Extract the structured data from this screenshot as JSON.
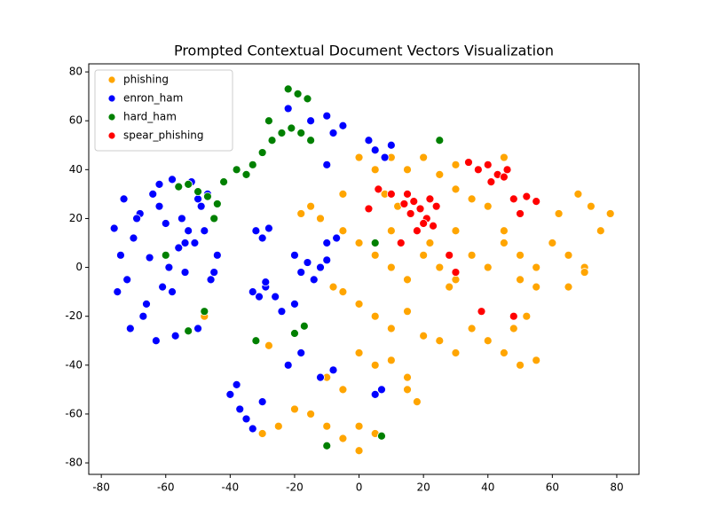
{
  "chart_data": {
    "type": "scatter",
    "title": "Prompted Contextual Document Vectors Visualization",
    "xlim": [
      -83.9,
      86.9
    ],
    "ylim": [
      -84.7,
      83.3
    ],
    "xticks": [
      -80,
      -60,
      -40,
      -20,
      0,
      20,
      40,
      60,
      80
    ],
    "yticks": [
      -80,
      -60,
      -40,
      -20,
      0,
      20,
      40,
      60,
      80
    ],
    "legend": "upper left",
    "series": [
      {
        "name": "phishing",
        "color": "#ffa500",
        "x": [
          0,
          5,
          10,
          15,
          20,
          25,
          30,
          8,
          12,
          0,
          5,
          10,
          15,
          20,
          25,
          30,
          35,
          40,
          45,
          50,
          55,
          60,
          65,
          70,
          62,
          68,
          72,
          78,
          75,
          50,
          55,
          45,
          40,
          35,
          30,
          45,
          -5,
          0,
          5,
          10,
          15,
          20,
          25,
          30,
          35,
          40,
          45,
          50,
          55,
          48,
          52,
          0,
          5,
          10,
          15,
          -10,
          -5,
          15,
          18,
          -15,
          -10,
          -5,
          0,
          5,
          -25,
          -20,
          -30,
          0,
          -15,
          -18,
          -12,
          -5,
          -5,
          -8,
          -28,
          -48,
          65,
          70,
          28,
          22,
          10,
          30
        ],
        "values": [
          45,
          40,
          45,
          40,
          45,
          38,
          42,
          30,
          25,
          10,
          5,
          0,
          -5,
          5,
          0,
          -5,
          5,
          0,
          10,
          5,
          0,
          10,
          5,
          0,
          22,
          30,
          25,
          22,
          15,
          -5,
          -8,
          15,
          25,
          28,
          32,
          45,
          -10,
          -15,
          -20,
          -25,
          -18,
          -28,
          -30,
          -35,
          -25,
          -30,
          -35,
          -40,
          -38,
          -25,
          -20,
          -35,
          -40,
          -38,
          -45,
          -45,
          -50,
          -50,
          -55,
          -60,
          -65,
          -70,
          -75,
          -68,
          -65,
          -58,
          -68,
          -65,
          25,
          22,
          20,
          30,
          15,
          -8,
          -32,
          -20,
          -8,
          -2,
          -8,
          10,
          15,
          15
        ]
      },
      {
        "name": "enron_ham",
        "color": "#0000ff",
        "x": [
          -76,
          -74,
          -72,
          -70,
          -68,
          -66,
          -64,
          -62,
          -60,
          -58,
          -56,
          -54,
          -52,
          -50,
          -48,
          -46,
          -44,
          -75,
          -71,
          -67,
          -63,
          -59,
          -55,
          -51,
          -47,
          -73,
          -69,
          -65,
          -61,
          -57,
          -53,
          -49,
          -45,
          -62,
          -58,
          -54,
          -50,
          -32,
          -30,
          -28,
          -33,
          -31,
          -29,
          -20,
          -18,
          -16,
          -14,
          -12,
          -10,
          -22,
          -15,
          -10,
          -8,
          -5,
          -10,
          -40,
          -37,
          -35,
          -33,
          -30,
          -38,
          -22,
          -18,
          -12,
          -8,
          3,
          5,
          7,
          5,
          8,
          10,
          -26,
          -24,
          -20,
          -10,
          -7,
          -29
        ],
        "values": [
          16,
          5,
          -5,
          12,
          22,
          -15,
          30,
          25,
          18,
          -10,
          8,
          -2,
          35,
          28,
          15,
          -5,
          5,
          -10,
          -25,
          -20,
          -30,
          0,
          20,
          10,
          30,
          28,
          20,
          4,
          -8,
          -28,
          15,
          25,
          -2,
          34,
          36,
          10,
          -25,
          15,
          12,
          16,
          -10,
          -12,
          -8,
          5,
          -2,
          2,
          -5,
          0,
          3,
          65,
          60,
          62,
          55,
          58,
          42,
          -52,
          -58,
          -62,
          -66,
          -55,
          -48,
          -40,
          -35,
          -45,
          -42,
          52,
          48,
          -50,
          -52,
          45,
          50,
          -12,
          -18,
          -15,
          10,
          12,
          -6
        ]
      },
      {
        "name": "hard_ham",
        "color": "#008000",
        "x": [
          -56,
          -53,
          -50,
          -47,
          -44,
          -42,
          -38,
          -35,
          -33,
          -30,
          -27,
          -24,
          -21,
          -18,
          -15,
          -22,
          -19,
          -16,
          -28,
          -60,
          -53,
          -20,
          -17,
          7,
          -10,
          25,
          5,
          -48,
          -45,
          -32
        ],
        "values": [
          33,
          34,
          31,
          29,
          26,
          35,
          40,
          38,
          42,
          47,
          52,
          55,
          57,
          55,
          52,
          73,
          71,
          69,
          60,
          5,
          -26,
          -27,
          -24,
          -69,
          -73,
          52,
          10,
          -18,
          20,
          -30
        ]
      },
      {
        "name": "spear_phishing",
        "color": "#ff0000",
        "x": [
          15,
          17,
          19,
          21,
          23,
          16,
          20,
          24,
          14,
          18,
          22,
          34,
          37,
          40,
          43,
          46,
          41,
          45,
          48,
          52,
          55,
          3,
          6,
          10,
          48,
          38,
          30,
          28,
          13,
          50
        ],
        "values": [
          30,
          27,
          24,
          20,
          17,
          22,
          18,
          25,
          26,
          15,
          28,
          43,
          40,
          42,
          38,
          40,
          35,
          37,
          28,
          29,
          27,
          24,
          32,
          30,
          -20,
          -18,
          -2,
          5,
          10,
          22
        ]
      }
    ]
  }
}
